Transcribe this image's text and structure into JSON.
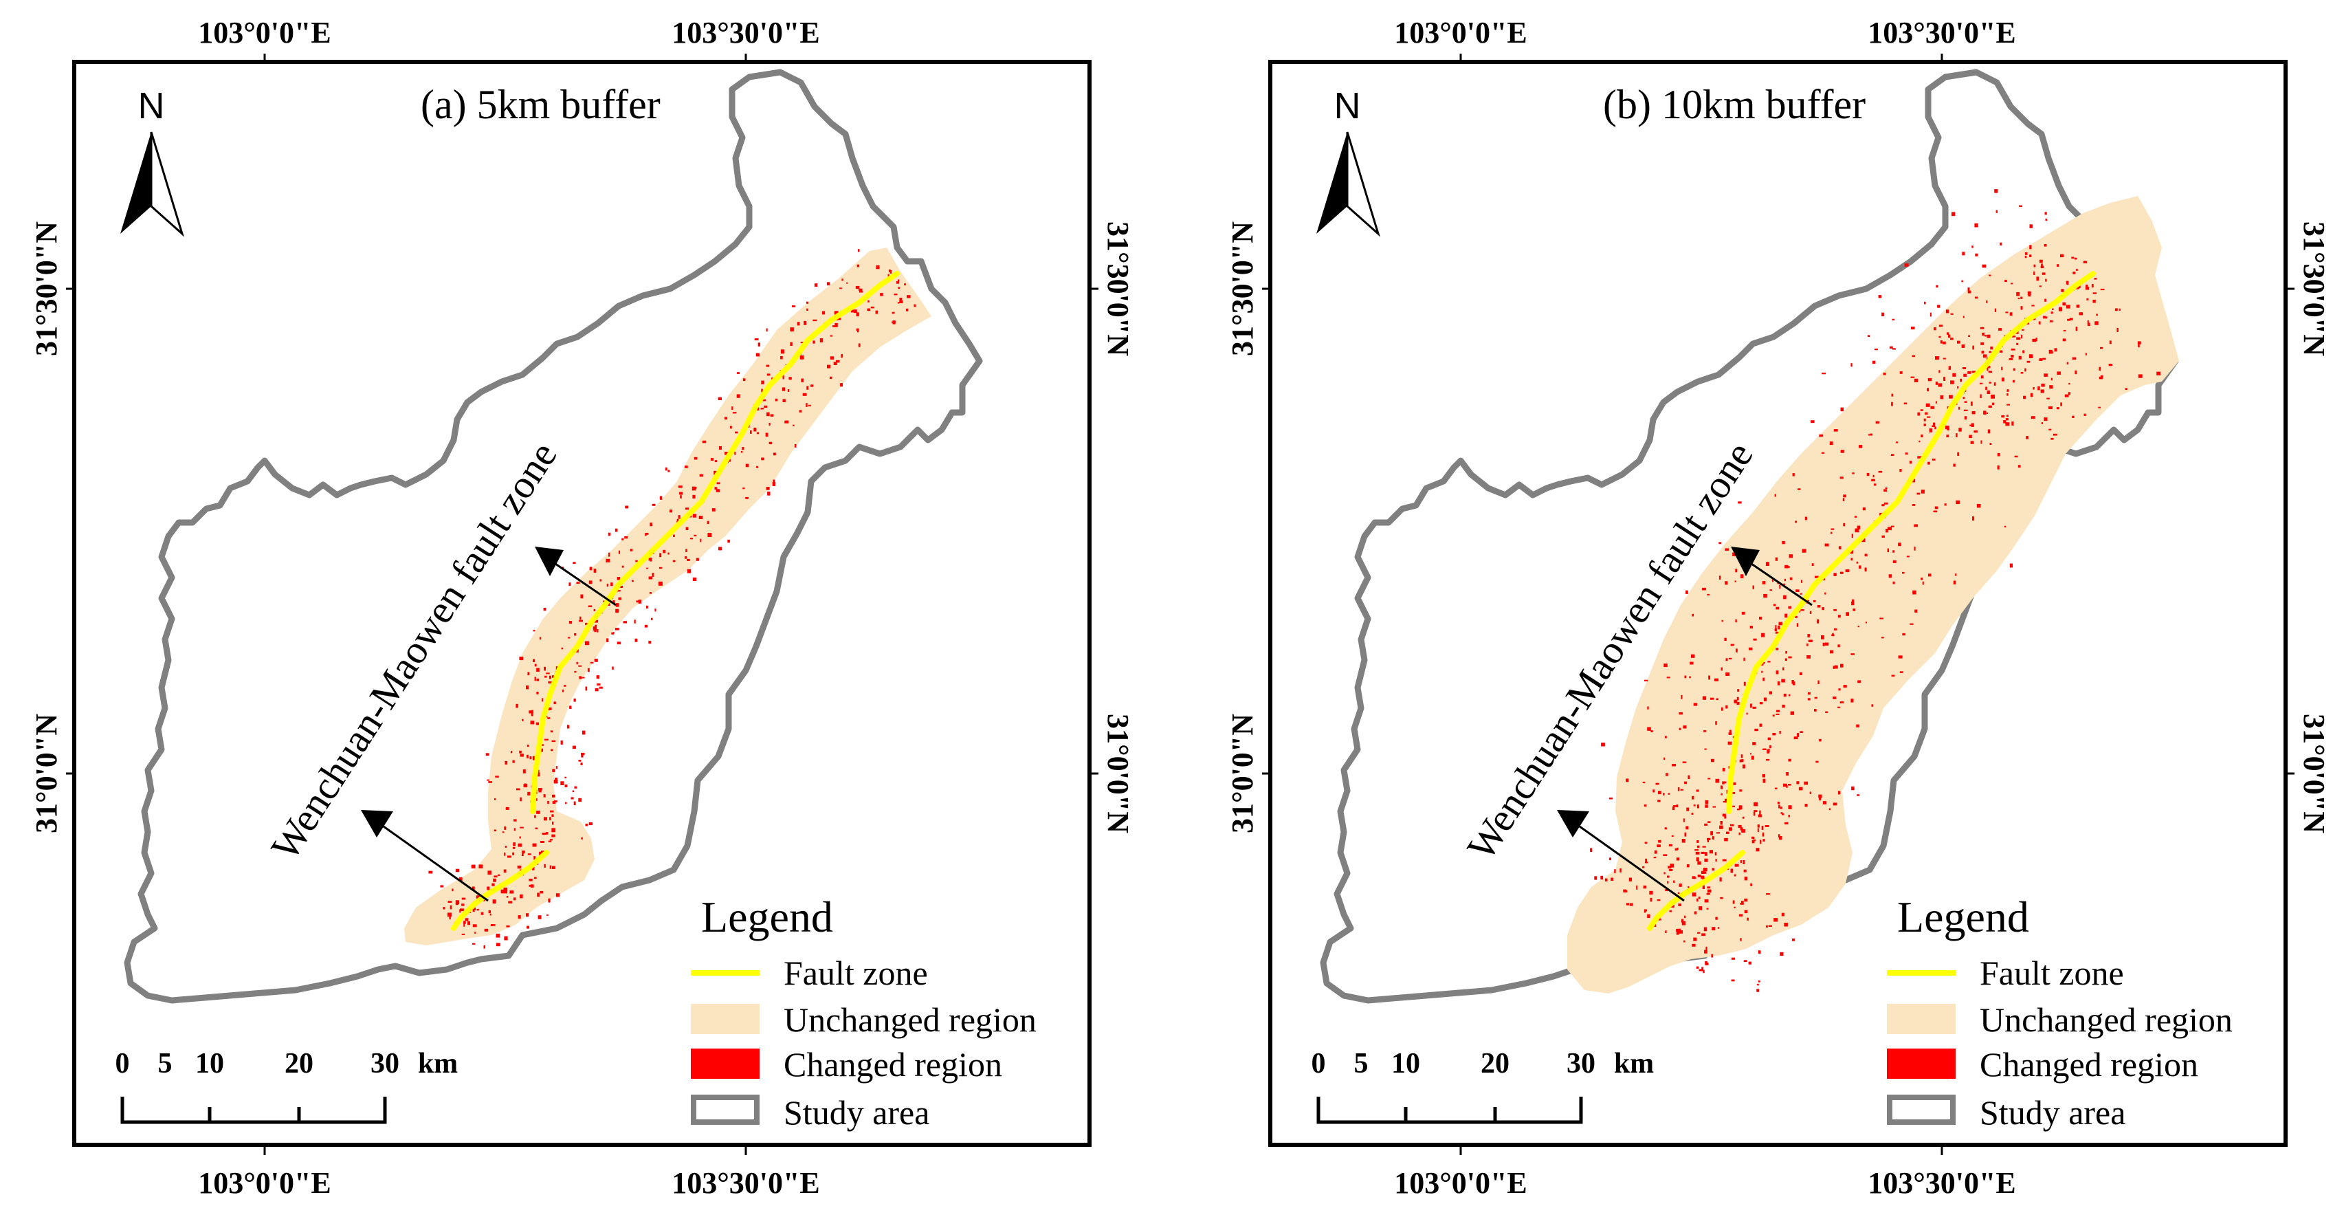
{
  "panels": [
    {
      "title": "(a) 5km buffer",
      "buffer_km": 5,
      "coords": {
        "top_lon_1": "103°0'0\"E",
        "top_lon_2": "103°30'0\"E",
        "bottom_lon_1": "103°0'0\"E",
        "bottom_lon_2": "103°30'0\"E",
        "left_lat_1": "31°30'0\"N",
        "left_lat_2": "31°0'0\"N",
        "right_lat_1": "31°30'0\"N",
        "right_lat_2": "31°0'0\"N"
      },
      "north_label": "N",
      "fault_label": "Wenchuan-Maowen fault zone",
      "legend": {
        "title": "Legend",
        "items": [
          {
            "label": "Fault zone",
            "color": "#ffff00",
            "symbol": "line"
          },
          {
            "label": "Unchanged region",
            "color": "#fbe5c0",
            "symbol": "fill"
          },
          {
            "label": "Changed region",
            "color": "#ff0000",
            "symbol": "fill"
          },
          {
            "label": "Study area",
            "color": "#808080",
            "symbol": "outline"
          }
        ]
      },
      "scale": {
        "ticks": [
          "0",
          "5",
          "10",
          "20",
          "30"
        ],
        "unit": "km"
      }
    },
    {
      "title": "(b) 10km buffer",
      "buffer_km": 10,
      "coords": {
        "top_lon_1": "103°0'0\"E",
        "top_lon_2": "103°30'0\"E",
        "bottom_lon_1": "103°0'0\"E",
        "bottom_lon_2": "103°30'0\"E",
        "left_lat_1": "31°30'0\"N",
        "left_lat_2": "31°0'0\"N",
        "right_lat_1": "31°30'0\"N",
        "right_lat_2": "31°0'0\"N"
      },
      "north_label": "N",
      "fault_label": "Wenchuan-Maowen fault zone",
      "legend": {
        "title": "Legend",
        "items": [
          {
            "label": "Fault zone",
            "color": "#ffff00",
            "symbol": "line"
          },
          {
            "label": "Unchanged region",
            "color": "#fbe5c0",
            "symbol": "fill"
          },
          {
            "label": "Changed region",
            "color": "#ff0000",
            "symbol": "fill"
          },
          {
            "label": "Study area",
            "color": "#808080",
            "symbol": "outline"
          }
        ]
      },
      "scale": {
        "ticks": [
          "0",
          "5",
          "10",
          "20",
          "30"
        ],
        "unit": "km"
      }
    }
  ]
}
